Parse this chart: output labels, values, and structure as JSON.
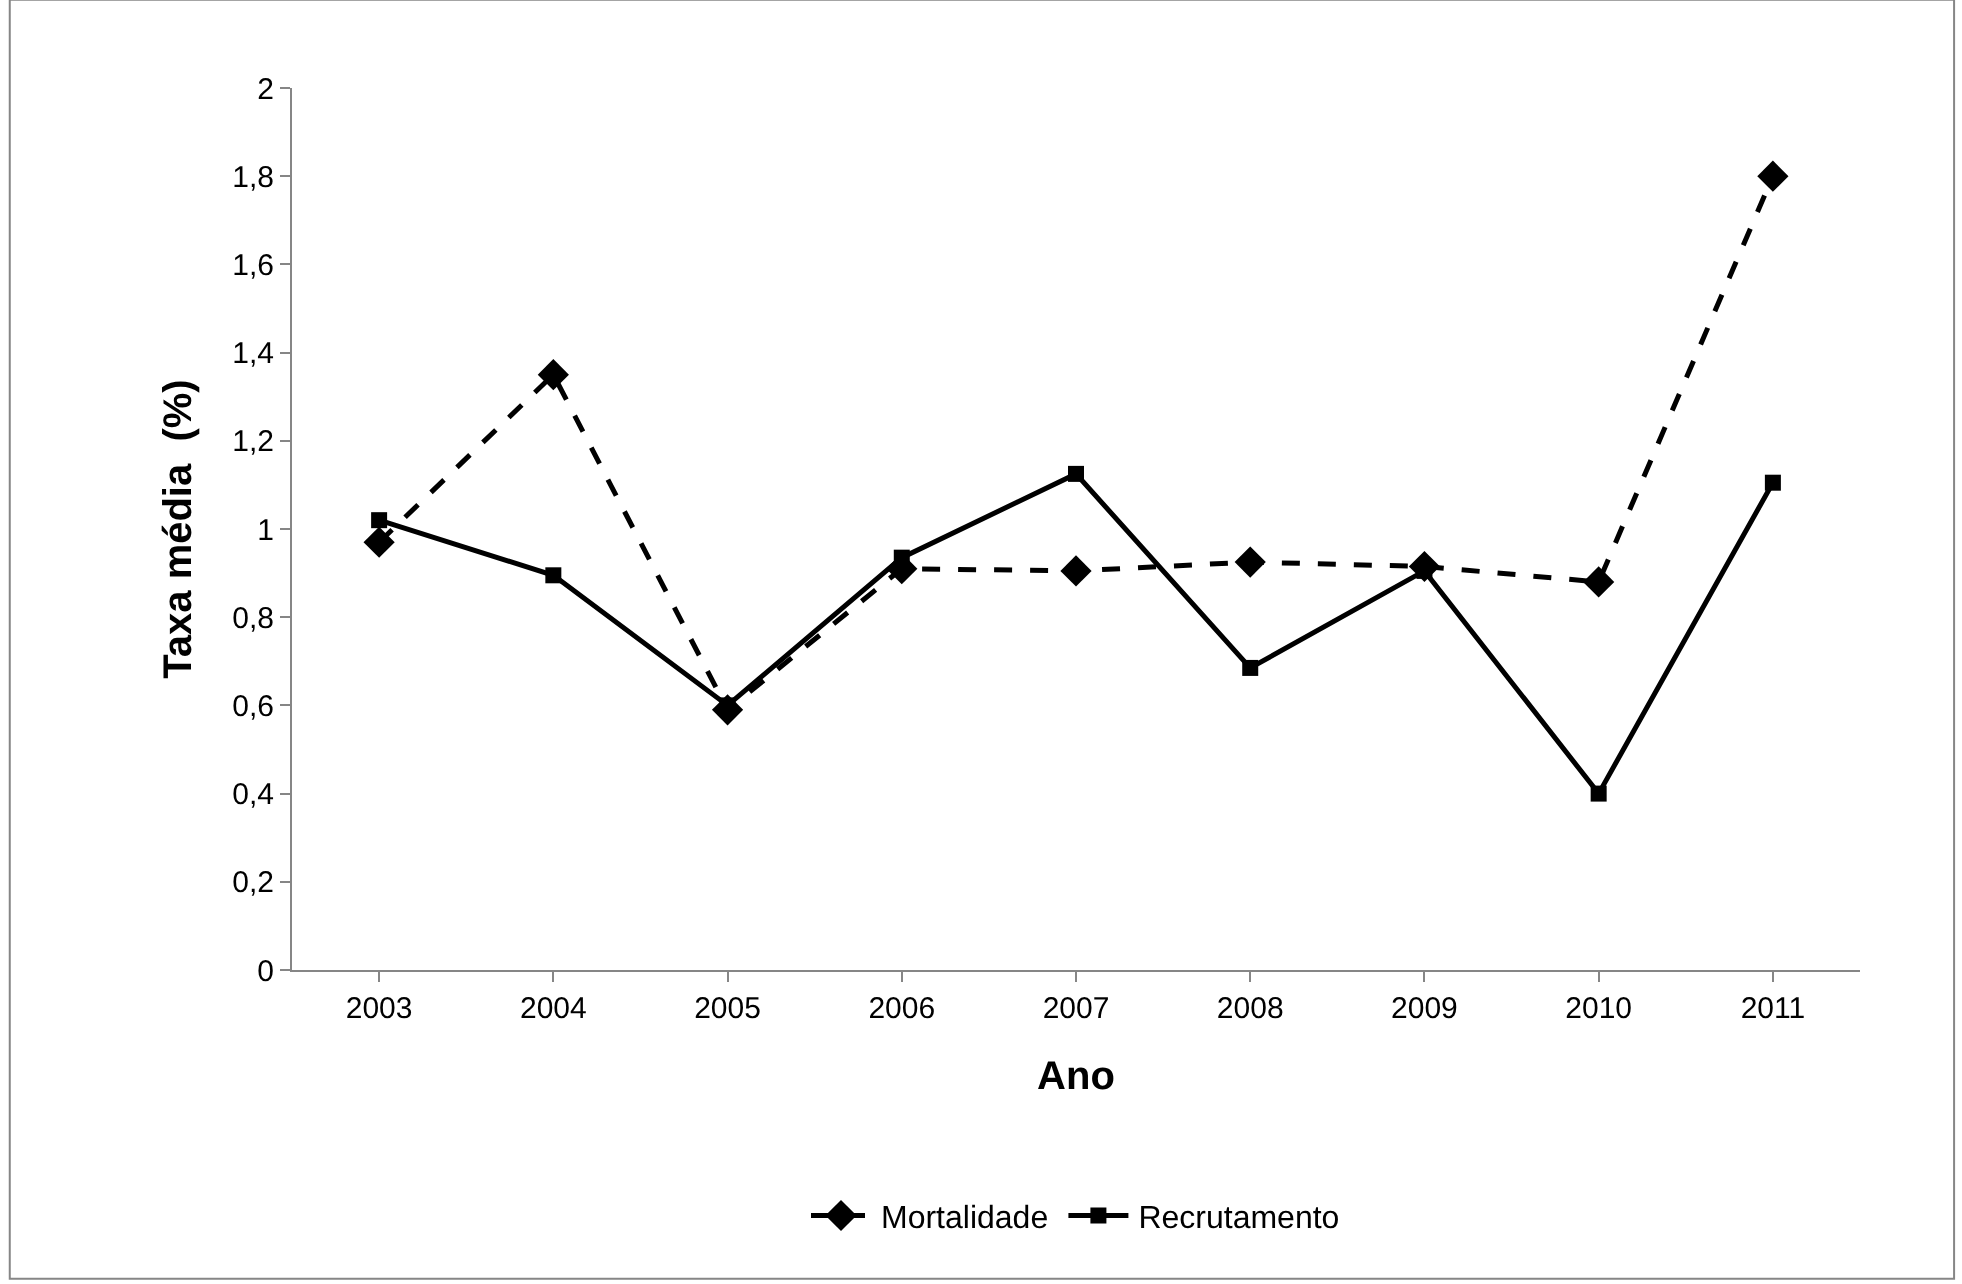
{
  "chart_data": {
    "type": "line",
    "xlabel": "Ano",
    "ylabel": "Taxa média  (%)",
    "categories": [
      "2003",
      "2004",
      "2005",
      "2006",
      "2007",
      "2008",
      "2009",
      "2010",
      "2011"
    ],
    "series": [
      {
        "name": "Mortalidade",
        "color": "#000000",
        "line_style": "dashed",
        "marker": "diamond",
        "values": [
          0.97,
          1.35,
          0.59,
          0.91,
          0.905,
          0.925,
          0.915,
          0.88,
          1.8
        ]
      },
      {
        "name": "Recrutamento",
        "color": "#000000",
        "line_style": "solid",
        "marker": "square",
        "values": [
          1.02,
          0.895,
          0.6,
          0.935,
          1.125,
          0.685,
          0.905,
          0.4,
          1.105
        ]
      }
    ],
    "ylim": [
      0,
      2
    ],
    "yticks": [
      0,
      {
        "value": 0.2,
        "label": "0,2"
      },
      {
        "value": 0.4,
        "label": "0,4"
      },
      {
        "value": 0.6,
        "label": "0,6"
      },
      {
        "value": 0.8,
        "label": "0,8"
      },
      1,
      {
        "value": 1.2,
        "label": "1,2"
      },
      {
        "value": 1.4,
        "label": "1,4"
      },
      {
        "value": 1.6,
        "label": "1,6"
      },
      {
        "value": 1.8,
        "label": "1,8"
      },
      2
    ],
    "grid": false,
    "legend": "bottom"
  }
}
